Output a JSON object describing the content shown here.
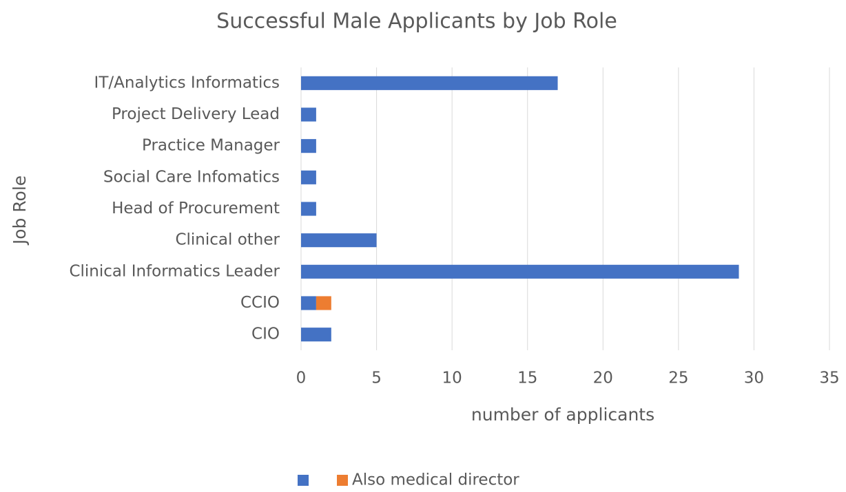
{
  "chart_data": {
    "type": "bar",
    "orientation": "horizontal",
    "stacked": true,
    "title": "Successful Male Applicants by Job Role",
    "x_label": "number of applicants",
    "y_label": "Job Role",
    "categories": [
      "CIO",
      "CCIO",
      "Clinical Informatics Leader",
      "Clinical other",
      "Head of Procurement",
      "Social Care Infomatics",
      "Practice Manager",
      "Project Delivery Lead",
      "IT/Analytics Informatics"
    ],
    "series": [
      {
        "color": "#4472c4",
        "values": [
          2,
          1,
          29,
          5,
          1,
          1,
          1,
          1,
          17
        ]
      },
      {
        "name": "Also medical director",
        "color": "#ed7d31",
        "values": [
          null,
          1,
          null,
          null,
          null,
          null,
          null,
          null,
          null
        ]
      }
    ],
    "xlim": [
      0,
      35
    ],
    "xticks": [
      0,
      5,
      10,
      15,
      20,
      25,
      30,
      35
    ],
    "grid": true,
    "legend": "bottom"
  }
}
